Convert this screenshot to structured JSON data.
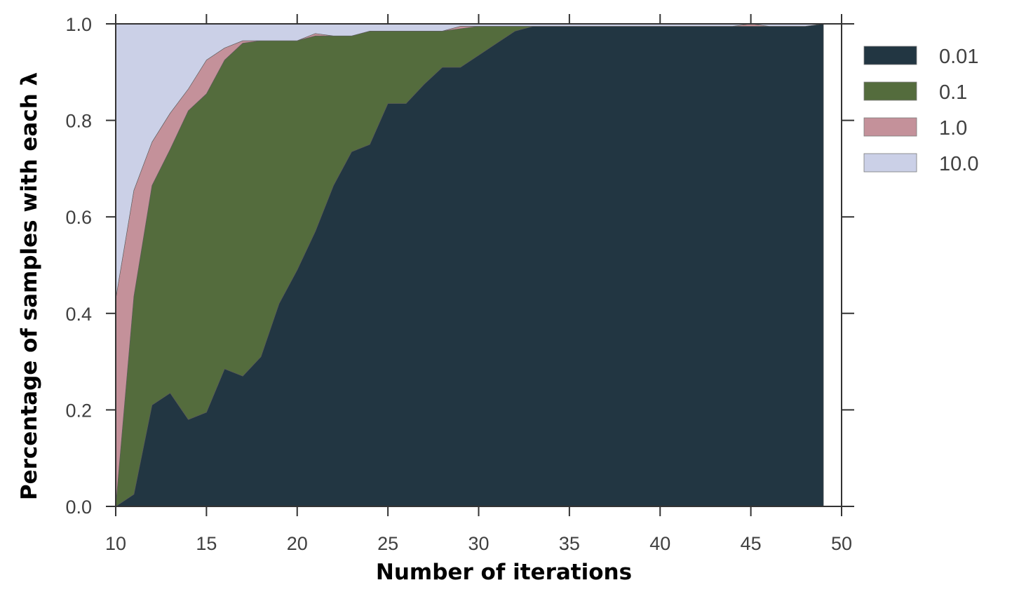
{
  "chart_data": {
    "type": "area",
    "stacked": true,
    "normalized": true,
    "xlabel": "Number of iterations",
    "ylabel": "Percentage of samples with each λ",
    "xlim": [
      10,
      50
    ],
    "ylim": [
      0.0,
      1.0
    ],
    "xticks": [
      "10",
      "15",
      "20",
      "25",
      "30",
      "35",
      "40",
      "45",
      "50"
    ],
    "yticks": [
      "0.0",
      "0.2",
      "0.4",
      "0.6",
      "0.8",
      "1.0"
    ],
    "grid": false,
    "legend_position": "outside-right-top",
    "x": [
      10,
      11,
      12,
      13,
      14,
      15,
      16,
      17,
      18,
      19,
      20,
      21,
      22,
      23,
      24,
      25,
      26,
      27,
      28,
      29,
      30,
      31,
      32,
      33,
      34,
      35,
      36,
      37,
      38,
      39,
      40,
      41,
      42,
      43,
      44,
      45,
      46,
      47,
      48,
      49
    ],
    "series": [
      {
        "name": "0.01",
        "color": "#223642",
        "values": [
          0.0,
          0.025,
          0.21,
          0.235,
          0.18,
          0.195,
          0.285,
          0.27,
          0.31,
          0.42,
          0.49,
          0.57,
          0.665,
          0.735,
          0.75,
          0.835,
          0.835,
          0.875,
          0.91,
          0.91,
          0.935,
          0.96,
          0.985,
          0.995,
          0.995,
          0.995,
          0.995,
          0.995,
          0.995,
          0.995,
          0.995,
          0.995,
          0.995,
          0.995,
          0.995,
          0.995,
          0.995,
          0.995,
          0.995,
          1.0
        ]
      },
      {
        "name": "0.1",
        "color": "#546c3d",
        "values": [
          0.0,
          0.41,
          0.455,
          0.505,
          0.64,
          0.66,
          0.64,
          0.69,
          0.655,
          0.545,
          0.475,
          0.405,
          0.31,
          0.24,
          0.235,
          0.15,
          0.15,
          0.11,
          0.075,
          0.08,
          0.06,
          0.035,
          0.01,
          0.0,
          0.0,
          0.0,
          0.0,
          0.0,
          0.0,
          0.0,
          0.0,
          0.0,
          0.0,
          0.0,
          0.0,
          0.0,
          0.0,
          0.0,
          0.0,
          0.0
        ]
      },
      {
        "name": "1.0",
        "color": "#c4919a",
        "values": [
          0.43,
          0.22,
          0.09,
          0.075,
          0.045,
          0.07,
          0.025,
          0.005,
          0.0,
          0.0,
          0.0,
          0.005,
          0.0,
          0.0,
          0.0,
          0.0,
          0.0,
          0.0,
          0.0,
          0.005,
          0.0,
          0.0,
          0.0,
          0.0,
          0.0,
          0.0,
          0.0,
          0.0,
          0.0,
          0.0,
          0.0,
          0.0,
          0.0,
          0.0,
          0.0,
          0.005,
          0.0,
          0.0,
          0.0,
          0.0
        ]
      },
      {
        "name": "10.0",
        "color": "#cbd0e7",
        "values": [
          0.57,
          0.345,
          0.245,
          0.185,
          0.135,
          0.075,
          0.05,
          0.035,
          0.035,
          0.035,
          0.035,
          0.02,
          0.025,
          0.025,
          0.015,
          0.015,
          0.015,
          0.015,
          0.015,
          0.005,
          0.005,
          0.005,
          0.005,
          0.005,
          0.005,
          0.005,
          0.005,
          0.005,
          0.005,
          0.005,
          0.005,
          0.005,
          0.005,
          0.005,
          0.005,
          0.0,
          0.005,
          0.005,
          0.005,
          0.0
        ]
      }
    ]
  }
}
